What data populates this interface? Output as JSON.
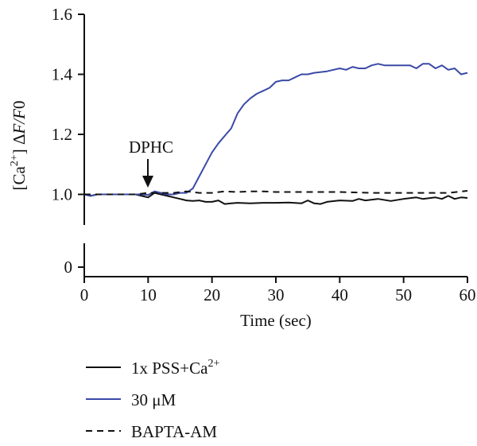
{
  "chart_data": {
    "type": "line",
    "xlabel": "Time (sec)",
    "ylabel": {
      "main": "[Ca",
      "sup": "2+",
      "rest": "] Δ",
      "italic": "F/F",
      "tail": "0"
    },
    "xlim": [
      0,
      60
    ],
    "ylim": [
      0,
      1.6
    ],
    "y_axis_break": {
      "from": 0.0,
      "to": 0.9
    },
    "x_ticks": [
      "0",
      "10",
      "20",
      "30",
      "40",
      "50",
      "60"
    ],
    "y_ticks": [
      "0",
      "1.0",
      "1.2",
      "1.4",
      "1.6"
    ],
    "grid": false,
    "legend_position": "bottom-left",
    "annotations": [
      {
        "text": "DPHC",
        "x": 10,
        "y": 1.0,
        "arrow": "down"
      }
    ],
    "series": [
      {
        "name": "1x PSS+Ca",
        "name_sup": "2+",
        "color": "#111111",
        "dash": "solid",
        "points": [
          [
            0,
            1.0
          ],
          [
            1,
            0.995
          ],
          [
            2,
            1.0
          ],
          [
            4,
            1.0
          ],
          [
            6,
            1.0
          ],
          [
            8,
            1.0
          ],
          [
            9,
            0.995
          ],
          [
            10,
            0.99
          ],
          [
            11,
            1.005
          ],
          [
            12,
            1.0
          ],
          [
            13,
            0.995
          ],
          [
            14,
            0.99
          ],
          [
            15,
            0.985
          ],
          [
            16,
            0.98
          ],
          [
            17,
            0.978
          ],
          [
            18,
            0.98
          ],
          [
            19,
            0.975
          ],
          [
            20,
            0.975
          ],
          [
            21,
            0.98
          ],
          [
            22,
            0.968
          ],
          [
            23,
            0.97
          ],
          [
            24,
            0.972
          ],
          [
            26,
            0.97
          ],
          [
            28,
            0.972
          ],
          [
            30,
            0.972
          ],
          [
            32,
            0.973
          ],
          [
            34,
            0.97
          ],
          [
            35,
            0.98
          ],
          [
            36,
            0.97
          ],
          [
            37,
            0.968
          ],
          [
            38,
            0.975
          ],
          [
            40,
            0.98
          ],
          [
            42,
            0.978
          ],
          [
            43,
            0.985
          ],
          [
            44,
            0.98
          ],
          [
            46,
            0.985
          ],
          [
            48,
            0.978
          ],
          [
            50,
            0.985
          ],
          [
            52,
            0.99
          ],
          [
            53,
            0.985
          ],
          [
            55,
            0.99
          ],
          [
            56,
            0.985
          ],
          [
            57,
            0.995
          ],
          [
            58,
            0.985
          ],
          [
            59,
            0.99
          ],
          [
            60,
            0.988
          ]
        ]
      },
      {
        "name": "30 μM",
        "color": "#3a4aa6",
        "dash": "solid",
        "points": [
          [
            0,
            1.0
          ],
          [
            1,
            0.995
          ],
          [
            2,
            1.0
          ],
          [
            4,
            1.0
          ],
          [
            6,
            1.0
          ],
          [
            8,
            1.0
          ],
          [
            9,
            1.0
          ],
          [
            10,
            0.998
          ],
          [
            11,
            1.01
          ],
          [
            12,
            1.005
          ],
          [
            13,
            1.0
          ],
          [
            14,
            1.0
          ],
          [
            15,
            1.005
          ],
          [
            16,
            1.005
          ],
          [
            17,
            1.02
          ],
          [
            18,
            1.06
          ],
          [
            19,
            1.1
          ],
          [
            20,
            1.14
          ],
          [
            21,
            1.17
          ],
          [
            22,
            1.195
          ],
          [
            23,
            1.22
          ],
          [
            24,
            1.27
          ],
          [
            25,
            1.3
          ],
          [
            26,
            1.32
          ],
          [
            27,
            1.335
          ],
          [
            28,
            1.345
          ],
          [
            29,
            1.355
          ],
          [
            30,
            1.375
          ],
          [
            31,
            1.38
          ],
          [
            32,
            1.38
          ],
          [
            33,
            1.39
          ],
          [
            34,
            1.4
          ],
          [
            35,
            1.4
          ],
          [
            36,
            1.405
          ],
          [
            38,
            1.41
          ],
          [
            40,
            1.42
          ],
          [
            41,
            1.415
          ],
          [
            42,
            1.425
          ],
          [
            43,
            1.42
          ],
          [
            44,
            1.42
          ],
          [
            45,
            1.43
          ],
          [
            46,
            1.435
          ],
          [
            47,
            1.43
          ],
          [
            48,
            1.43
          ],
          [
            50,
            1.43
          ],
          [
            51,
            1.43
          ],
          [
            52,
            1.42
          ],
          [
            53,
            1.435
          ],
          [
            54,
            1.435
          ],
          [
            55,
            1.42
          ],
          [
            56,
            1.43
          ],
          [
            57,
            1.415
          ],
          [
            58,
            1.42
          ],
          [
            59,
            1.4
          ],
          [
            60,
            1.405
          ]
        ]
      },
      {
        "name": "BAPTA-AM",
        "color": "#111111",
        "dash": "dashed",
        "points": [
          [
            0,
            1.0
          ],
          [
            2,
            1.0
          ],
          [
            4,
            1.0
          ],
          [
            6,
            1.0
          ],
          [
            8,
            1.0
          ],
          [
            10,
            1.005
          ],
          [
            12,
            1.005
          ],
          [
            14,
            1.005
          ],
          [
            16,
            1.01
          ],
          [
            18,
            1.005
          ],
          [
            20,
            1.005
          ],
          [
            22,
            1.01
          ],
          [
            24,
            1.008
          ],
          [
            26,
            1.01
          ],
          [
            28,
            1.01
          ],
          [
            30,
            1.008
          ],
          [
            35,
            1.008
          ],
          [
            40,
            1.008
          ],
          [
            45,
            1.005
          ],
          [
            50,
            1.005
          ],
          [
            55,
            1.005
          ],
          [
            57,
            1.005
          ],
          [
            60,
            1.012
          ]
        ]
      }
    ]
  }
}
